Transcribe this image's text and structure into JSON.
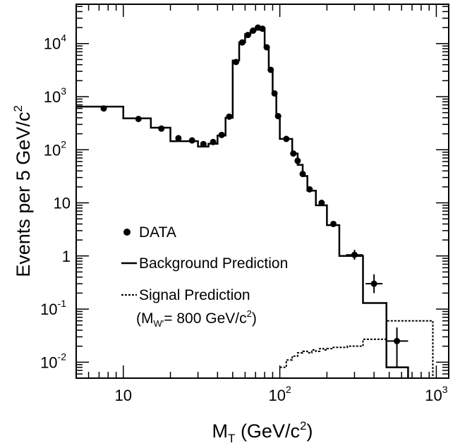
{
  "chart_data": {
    "type": "line",
    "xlabel": {
      "main": "M",
      "sub": "T",
      "unit_pre": " (GeV/c",
      "unit_sup": "2",
      "unit_post": ")"
    },
    "ylabel": {
      "main": "Events per 5 GeV/c",
      "sup": "2"
    },
    "x_scale": "log",
    "y_scale": "log",
    "xlim": [
      5,
      1200
    ],
    "ylim": [
      0.005,
      55000
    ],
    "x_ticks": [
      {
        "value": 10,
        "base": "10",
        "exp": ""
      },
      {
        "value": 100,
        "base": "10",
        "exp": "2"
      },
      {
        "value": 1000,
        "base": "10",
        "exp": "3"
      }
    ],
    "y_ticks": [
      {
        "value": 0.01,
        "base": "10",
        "exp": "-2"
      },
      {
        "value": 0.1,
        "base": "10",
        "exp": "-1"
      },
      {
        "value": 1,
        "base": "1",
        "exp": ""
      },
      {
        "value": 10,
        "base": "10",
        "exp": ""
      },
      {
        "value": 100,
        "base": "10",
        "exp": "2"
      },
      {
        "value": 1000,
        "base": "10",
        "exp": "3"
      },
      {
        "value": 10000,
        "base": "10",
        "exp": "4"
      }
    ],
    "legend": {
      "placement": "bottom-left",
      "data_label": "DATA",
      "background_label": "Background Prediction",
      "signal_label_line1": "Signal Prediction",
      "signal_label_open": "(M",
      "signal_label_sub": "W'",
      "signal_label_mid": "= 800 GeV/c",
      "signal_label_sup": "2",
      "signal_label_close": ")"
    },
    "series": [
      {
        "name": "DATA",
        "style": "points",
        "points": [
          {
            "x": 7.5,
            "y": 600
          },
          {
            "x": 12.5,
            "y": 380
          },
          {
            "x": 17.5,
            "y": 250
          },
          {
            "x": 22.5,
            "y": 165
          },
          {
            "x": 27.5,
            "y": 150
          },
          {
            "x": 32.5,
            "y": 128
          },
          {
            "x": 37.5,
            "y": 140
          },
          {
            "x": 42.5,
            "y": 190
          },
          {
            "x": 47.5,
            "y": 420
          },
          {
            "x": 52.5,
            "y": 4500
          },
          {
            "x": 57.5,
            "y": 10500
          },
          {
            "x": 62.5,
            "y": 14500
          },
          {
            "x": 67.5,
            "y": 17500
          },
          {
            "x": 72.5,
            "y": 20000
          },
          {
            "x": 77.5,
            "y": 19000
          },
          {
            "x": 82.5,
            "y": 8500
          },
          {
            "x": 87.5,
            "y": 3200
          },
          {
            "x": 92.5,
            "y": 1150
          },
          {
            "x": 97.5,
            "y": 430
          },
          {
            "x": 110,
            "y": 160
          },
          {
            "x": 122,
            "y": 85
          },
          {
            "x": 130,
            "y": 62
          },
          {
            "x": 140,
            "y": 35
          },
          {
            "x": 155,
            "y": 18
          },
          {
            "x": 185,
            "y": 10
          },
          {
            "x": 220,
            "y": 4
          },
          {
            "x": 300,
            "y": 1.05,
            "err": [
              0.85,
              1.3
            ]
          },
          {
            "x": 400,
            "y": 0.3,
            "err": [
              0.2,
              0.45
            ]
          },
          {
            "x": 560,
            "y": 0.025,
            "err": [
              0.008,
              0.045
            ],
            "xerr": [
              480,
              660
            ]
          }
        ]
      },
      {
        "name": "Background Prediction",
        "style": "solid-step",
        "edges": [
          5,
          10,
          15,
          20,
          25,
          30,
          35,
          40,
          45,
          50,
          55,
          60,
          65,
          70,
          75,
          80,
          85,
          90,
          95,
          100,
          120,
          130,
          140,
          150,
          170,
          200,
          240,
          340,
          480,
          660
        ],
        "values": [
          650,
          390,
          260,
          145,
          145,
          115,
          130,
          185,
          400,
          4800,
          10500,
          15000,
          17500,
          20000,
          18000,
          8500,
          3200,
          1150,
          420,
          160,
          85,
          52,
          32,
          17,
          9,
          3.8,
          1.0,
          0.13,
          0.008
        ]
      },
      {
        "name": "Signal Prediction",
        "style": "dotted-step",
        "edges": [
          100,
          110,
          120,
          130,
          140,
          150,
          160,
          170,
          180,
          190,
          200,
          215,
          230,
          250,
          270,
          300,
          340,
          480,
          660,
          950
        ],
        "values": [
          0.008,
          0.011,
          0.013,
          0.015,
          0.016,
          0.015,
          0.017,
          0.016,
          0.018,
          0.017,
          0.018,
          0.019,
          0.019,
          0.019,
          0.02,
          0.02,
          0.027,
          0.06,
          0.06
        ]
      }
    ]
  }
}
